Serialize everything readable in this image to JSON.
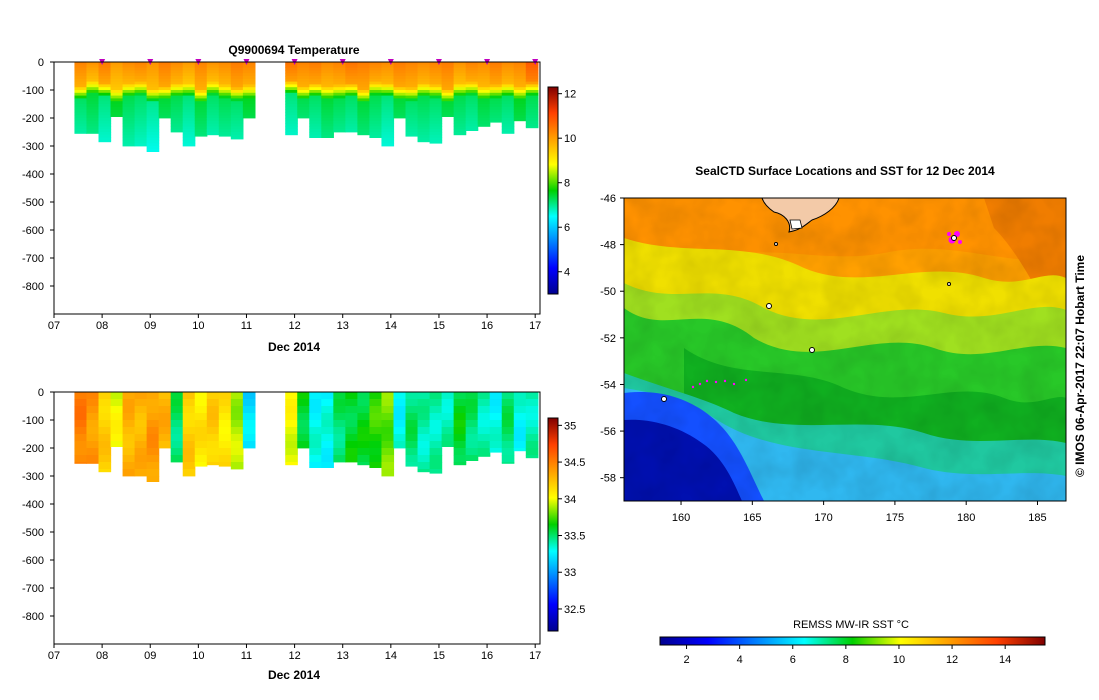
{
  "credit": "© IMOS 06-Apr-2017 22:07 Hobart Time",
  "chart_data": [
    {
      "type": "heatmap",
      "title": "Q9900694  Temperature",
      "xlabel": "Dec 2014",
      "x_ticks": [
        "07",
        "08",
        "09",
        "10",
        "11",
        "12",
        "13",
        "14",
        "15",
        "16",
        "17"
      ],
      "x_range": [
        7,
        17
      ],
      "y_ticks": [
        0,
        -100,
        -200,
        -300,
        -400,
        -500,
        -600,
        -700,
        -800
      ],
      "ylim": [
        -900,
        0
      ],
      "colorbar": {
        "ticks": [
          4,
          6,
          8,
          10,
          12
        ],
        "range": [
          3,
          12.3
        ]
      },
      "profile_times": [
        7.55,
        7.8,
        8.05,
        8.3,
        8.55,
        8.8,
        9.05,
        9.3,
        9.55,
        9.8,
        10.05,
        10.3,
        10.55,
        10.8,
        11.05,
        11.93,
        12.18,
        12.43,
        12.68,
        12.93,
        13.18,
        13.43,
        13.68,
        13.93,
        14.18,
        14.43,
        14.68,
        14.93,
        15.18,
        15.43,
        15.68,
        15.93,
        16.18,
        16.43,
        16.68,
        16.93
      ],
      "profile_max_depth": [
        255,
        255,
        285,
        195,
        300,
        300,
        320,
        200,
        250,
        300,
        265,
        260,
        265,
        275,
        200,
        260,
        200,
        270,
        270,
        250,
        250,
        260,
        270,
        300,
        200,
        265,
        285,
        290,
        195,
        260,
        245,
        230,
        215,
        255,
        210,
        235
      ],
      "surface_temp": [
        10.3,
        10.1,
        10.4,
        10.0,
        10.2,
        10.3,
        10.1,
        10.4,
        10.2,
        10.0,
        10.3,
        10.1,
        10.2,
        10.4,
        10.3,
        10.5,
        10.3,
        10.4,
        10.2,
        10.3,
        10.5,
        10.4,
        10.3,
        10.2,
        10.4,
        10.3,
        10.2,
        10.3,
        10.4,
        10.1,
        10.3,
        10.2,
        10.4,
        10.2,
        10.3,
        10.8
      ],
      "bottom_temp": [
        7.2,
        7.4,
        7.1,
        7.5,
        7.3,
        7.2,
        7.0,
        7.4,
        7.3,
        7.1,
        7.4,
        7.2,
        7.3,
        7.2,
        7.5,
        7.1,
        7.3,
        7.2,
        7.4,
        7.3,
        7.2,
        7.4,
        7.3,
        7.1,
        7.4,
        7.2,
        7.3,
        7.2,
        7.4,
        7.3,
        7.2,
        7.4,
        7.3,
        7.2,
        7.5,
        7.3
      ],
      "thermocline_depth": [
        110,
        90,
        100,
        120,
        100,
        95,
        120,
        110,
        100,
        100,
        120,
        95,
        105,
        115,
        105,
        90,
        110,
        100,
        110,
        105,
        100,
        120,
        95,
        100,
        110,
        115,
        100,
        105,
        120,
        100,
        95,
        110,
        105,
        100,
        110,
        95
      ],
      "marker_times": [
        8,
        9,
        10,
        11,
        12,
        13,
        14,
        15,
        16,
        17
      ]
    },
    {
      "type": "heatmap",
      "title": "",
      "xlabel": "Dec 2014",
      "x_ticks": [
        "07",
        "08",
        "09",
        "10",
        "11",
        "12",
        "13",
        "14",
        "15",
        "16",
        "17"
      ],
      "x_range": [
        7,
        17
      ],
      "y_ticks": [
        0,
        -100,
        -200,
        -300,
        -400,
        -500,
        -600,
        -700,
        -800
      ],
      "ylim": [
        -900,
        0
      ],
      "colorbar": {
        "ticks": [
          32.5,
          33,
          33.5,
          34,
          34.5,
          35
        ],
        "range": [
          32.2,
          35.1
        ]
      },
      "profile_values": [
        34.5,
        34.4,
        34.2,
        34.0,
        34.3,
        34.3,
        34.4,
        34.3,
        33.5,
        34.2,
        34.1,
        34.2,
        34.1,
        33.9,
        33.2,
        34.0,
        33.6,
        33.3,
        33.3,
        33.5,
        33.6,
        33.6,
        33.7,
        33.8,
        33.3,
        33.5,
        33.4,
        33.4,
        33.4,
        33.6,
        33.5,
        33.4,
        33.3,
        33.5,
        33.3,
        33.4
      ],
      "profile_max_depth": [
        255,
        255,
        285,
        195,
        300,
        300,
        320,
        200,
        250,
        300,
        265,
        260,
        265,
        275,
        200,
        260,
        200,
        270,
        270,
        250,
        250,
        260,
        270,
        300,
        200,
        265,
        285,
        290,
        195,
        260,
        245,
        230,
        215,
        255,
        210,
        235
      ]
    },
    {
      "type": "heatmap",
      "title": "SealCTD Surface Locations and SST for 12 Dec 2014",
      "x_ticks": [
        160,
        165,
        170,
        175,
        180,
        185
      ],
      "y_ticks": [
        -46,
        -48,
        -50,
        -52,
        -54,
        -56,
        -58
      ],
      "xlim": [
        156,
        187
      ],
      "ylim": [
        -59,
        -46
      ],
      "colorbar": {
        "label": "REMSS MW-IR SST °C",
        "ticks": [
          2,
          4,
          6,
          8,
          10,
          12,
          14
        ],
        "range": [
          1,
          15.5
        ]
      },
      "grid": false
    }
  ]
}
